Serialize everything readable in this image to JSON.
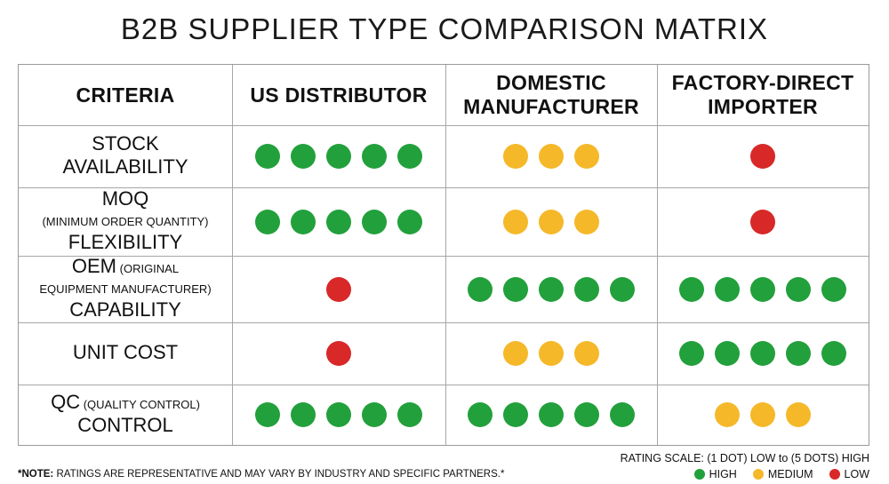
{
  "title": "B2B SUPPLIER TYPE COMPARISON MATRIX",
  "colors": {
    "high": "#22a03c",
    "medium": "#f5b829",
    "low": "#d82828"
  },
  "chart_data": {
    "type": "table",
    "title": "B2B SUPPLIER TYPE COMPARISON MATRIX",
    "header_label": "CRITERIA",
    "columns": [
      "US DISTRIBUTOR",
      "DOMESTIC MANUFACTURER",
      "FACTORY-DIRECT IMPORTER"
    ],
    "rows": [
      {
        "lines": [
          {
            "big": "STOCK"
          },
          {
            "big": "AVAILABILITY"
          }
        ],
        "ratings": [
          5,
          3,
          1
        ]
      },
      {
        "lines": [
          {
            "big": "MOQ"
          },
          {
            "small": "(MINIMUM ORDER QUANTITY)"
          },
          {
            "big": "FLEXIBILITY"
          }
        ],
        "ratings": [
          5,
          3,
          1
        ]
      },
      {
        "lines": [
          {
            "big": "OEM",
            "small": " (ORIGINAL"
          },
          {
            "small": "EQUIPMENT MANUFACTURER)"
          },
          {
            "big": "CAPABILITY"
          }
        ],
        "ratings": [
          1,
          5,
          5
        ]
      },
      {
        "lines": [
          {
            "big": "UNIT COST"
          }
        ],
        "ratings": [
          1,
          3,
          5
        ]
      },
      {
        "lines": [
          {
            "big": "QC",
            "small": " (QUALITY CONTROL)"
          },
          {
            "big": "CONTROL"
          }
        ],
        "ratings": [
          5,
          5,
          3
        ]
      }
    ],
    "rating_scale": "RATING SCALE: (1 DOT) LOW to (5 DOTS) HIGH",
    "legend": [
      {
        "label": "HIGH",
        "level": "high"
      },
      {
        "label": "MEDIUM",
        "level": "medium"
      },
      {
        "label": "LOW",
        "level": "low"
      }
    ]
  },
  "note": {
    "prefix": "*NOTE:",
    "text": " RATINGS ARE REPRESENTATIVE AND MAY VARY BY INDUSTRY AND SPECIFIC PARTNERS.*"
  }
}
